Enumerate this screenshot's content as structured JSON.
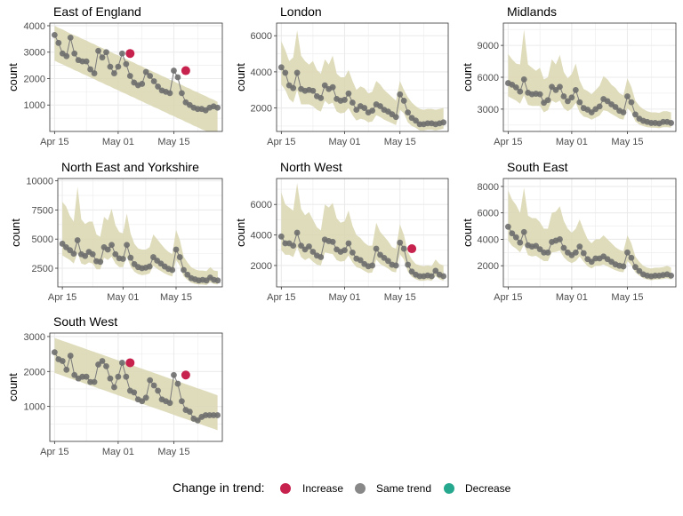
{
  "chart_data": [
    {
      "type": "scatter",
      "title": "East of England",
      "ylabel": "count",
      "ylim": [
        0,
        4100
      ],
      "yticks": [
        1000,
        2000,
        3000,
        4000
      ],
      "xlabel": "",
      "xticks": [
        "Apr 15",
        "May 01",
        "May 15"
      ],
      "values": [
        3650,
        3350,
        2950,
        2850,
        3550,
        2950,
        2700,
        2650,
        2650,
        2350,
        2200,
        3050,
        2800,
        3000,
        2450,
        2200,
        2450,
        2950,
        2550,
        2100,
        1850,
        1750,
        1800,
        2250,
        2100,
        1900,
        1700,
        1550,
        1500,
        1450,
        2300,
        2050,
        1450,
        1100,
        1000,
        900,
        850,
        850,
        800,
        900,
        950,
        900
      ],
      "band_hi": [
        4000,
        3920,
        3860,
        3780,
        3700,
        3640,
        3580,
        3500,
        3440,
        3360,
        3300,
        3220,
        3160,
        3080,
        3020,
        2940,
        2880,
        2800,
        2740,
        2660,
        2600,
        2520,
        2460,
        2380,
        2320,
        2240,
        2180,
        2100,
        2040,
        1960,
        1900,
        1820,
        1760,
        1680,
        1620,
        1540,
        1480,
        1400,
        1340,
        1260,
        1200,
        1120
      ],
      "band_lo": [
        2680,
        2600,
        2540,
        2460,
        2400,
        2320,
        2260,
        2180,
        2120,
        2040,
        1980,
        1900,
        1840,
        1760,
        1700,
        1620,
        1560,
        1480,
        1420,
        1340,
        1280,
        1200,
        1140,
        1060,
        1000,
        920,
        860,
        780,
        720,
        640,
        580,
        500,
        440,
        360,
        300,
        220,
        160,
        80,
        20,
        -40,
        -80,
        -120
      ],
      "highlight": [
        {
          "day": 19,
          "value": 2950,
          "status": "Increase"
        },
        {
          "day": 33,
          "value": 2300,
          "status": "Increase"
        }
      ]
    },
    {
      "type": "scatter",
      "title": "London",
      "ylabel": "count",
      "ylim": [
        700,
        6700
      ],
      "yticks": [
        2000,
        4000,
        6000
      ],
      "xlabel": "",
      "xticks": [
        "Apr 15",
        "May 01",
        "May 15"
      ],
      "values": [
        4250,
        3950,
        3250,
        3100,
        3950,
        3050,
        2950,
        3000,
        2950,
        2650,
        2550,
        3250,
        3050,
        3150,
        2500,
        2400,
        2450,
        2800,
        2300,
        1900,
        2100,
        2000,
        1750,
        1850,
        2200,
        2100,
        1900,
        1800,
        1650,
        1500,
        2750,
        2400,
        1750,
        1450,
        1300,
        1100,
        1100,
        1150,
        1150,
        1100,
        1150,
        1200
      ],
      "band_hi": [
        5700,
        5200,
        4600,
        4800,
        6300,
        4900,
        4600,
        4400,
        4600,
        4100,
        3900,
        4700,
        4400,
        4900,
        3900,
        3700,
        3700,
        4100,
        3500,
        3000,
        3200,
        3100,
        2800,
        2900,
        3500,
        3300,
        3000,
        2800,
        2600,
        2400,
        3500,
        3000,
        2600,
        2300,
        2100,
        1950,
        1900,
        1950,
        1950,
        1900,
        1950,
        2000
      ],
      "band_lo": [
        3300,
        3000,
        2500,
        2300,
        3000,
        2200,
        2200,
        2200,
        2100,
        1900,
        1800,
        2400,
        2200,
        2300,
        1800,
        1700,
        1750,
        2000,
        1600,
        1300,
        1400,
        1350,
        1200,
        1250,
        1600,
        1500,
        1350,
        1250,
        1150,
        1050,
        1900,
        1700,
        1200,
        1000,
        900,
        750,
        750,
        800,
        800,
        750,
        800,
        850
      ],
      "highlight": []
    },
    {
      "type": "scatter",
      "title": "Midlands",
      "ylabel": "count",
      "ylim": [
        900,
        11100
      ],
      "yticks": [
        3000,
        6000,
        9000
      ],
      "xlabel": "",
      "xticks": [
        "Apr 15",
        "May 01",
        "May 15"
      ],
      "values": [
        5450,
        5300,
        5050,
        4650,
        5800,
        4550,
        4400,
        4450,
        4400,
        3600,
        3850,
        5100,
        4800,
        5100,
        4200,
        3750,
        4100,
        4800,
        3650,
        3100,
        2950,
        2700,
        3000,
        3250,
        3950,
        3750,
        3450,
        3200,
        2850,
        2700,
        4200,
        3650,
        2500,
        2100,
        1900,
        1800,
        1700,
        1700,
        1650,
        1800,
        1800,
        1700
      ],
      "band_hi": [
        8200,
        7700,
        7300,
        7200,
        10500,
        7200,
        6900,
        6600,
        6900,
        5800,
        6000,
        7700,
        7200,
        8100,
        6500,
        5900,
        6300,
        7300,
        5700,
        4900,
        4700,
        4400,
        4800,
        5200,
        6100,
        5800,
        5300,
        5000,
        4500,
        4300,
        5900,
        5100,
        3800,
        3300,
        3000,
        2800,
        2700,
        2700,
        2650,
        2800,
        2800,
        2700
      ],
      "band_lo": [
        4200,
        4000,
        3800,
        3500,
        4300,
        3400,
        3300,
        3300,
        3300,
        2700,
        2900,
        3800,
        3600,
        3800,
        3100,
        2800,
        3050,
        3600,
        2700,
        2300,
        2200,
        2000,
        2200,
        2400,
        2900,
        2800,
        2550,
        2350,
        2100,
        2000,
        3100,
        2700,
        1850,
        1550,
        1400,
        1300,
        1250,
        1250,
        1200,
        1300,
        1300,
        1250
      ],
      "highlight": []
    },
    {
      "type": "scatter",
      "title": "North East and Yorkshire",
      "ylabel": "count",
      "ylim": [
        900,
        10200
      ],
      "yticks": [
        2500,
        5000,
        7500,
        10000
      ],
      "xlabel": "",
      "xticks": [
        "Apr 15",
        "May 01",
        "May 15"
      ],
      "values": [
        4600,
        4300,
        4050,
        3750,
        4900,
        3700,
        3550,
        3900,
        3700,
        3100,
        3050,
        4300,
        4100,
        4500,
        3700,
        3350,
        3300,
        4500,
        3400,
        2850,
        2600,
        2500,
        2550,
        2650,
        3450,
        3150,
        2900,
        2650,
        2450,
        2350,
        4100,
        3450,
        2350,
        1950,
        1650,
        1550,
        1450,
        1500,
        1450,
        1700,
        1500,
        1450
      ],
      "band_hi": [
        8200,
        7800,
        7000,
        6500,
        9500,
        6700,
        6300,
        6500,
        6500,
        5400,
        5200,
        6900,
        6600,
        7600,
        6200,
        5600,
        5500,
        7200,
        5500,
        4600,
        4200,
        4100,
        4100,
        4300,
        5400,
        5000,
        4600,
        4200,
        3900,
        3700,
        5800,
        4900,
        3500,
        3000,
        2600,
        2400,
        2300,
        2300,
        2250,
        2600,
        2300,
        2250
      ],
      "band_lo": [
        3600,
        3400,
        3200,
        2900,
        3800,
        2900,
        2800,
        3000,
        2900,
        2400,
        2400,
        3400,
        3200,
        3500,
        2900,
        2600,
        2600,
        3500,
        2650,
        2200,
        2000,
        1900,
        1950,
        2050,
        2700,
        2450,
        2250,
        2050,
        1900,
        1800,
        3200,
        2700,
        1800,
        1500,
        1250,
        1150,
        1100,
        1100,
        1050,
        1300,
        1150,
        1100
      ],
      "highlight": []
    },
    {
      "type": "scatter",
      "title": "North West",
      "ylabel": "count",
      "ylim": [
        600,
        7700
      ],
      "yticks": [
        2000,
        4000,
        6000
      ],
      "xlabel": "",
      "xticks": [
        "Apr 15",
        "May 01",
        "May 15"
      ],
      "values": [
        3900,
        3450,
        3450,
        3300,
        4150,
        3300,
        3050,
        3250,
        2900,
        2650,
        2550,
        3700,
        3600,
        3550,
        3050,
        2900,
        3000,
        3450,
        2850,
        2450,
        2350,
        2100,
        1950,
        2000,
        3100,
        2700,
        2500,
        2300,
        2050,
        2000,
        3500,
        3100,
        2050,
        1600,
        1400,
        1300,
        1300,
        1350,
        1300,
        1650,
        1400,
        1300
      ],
      "band_hi": [
        6800,
        6000,
        5800,
        5600,
        7400,
        5700,
        5300,
        5500,
        5000,
        4500,
        4300,
        6000,
        5800,
        6100,
        5100,
        4800,
        4900,
        5600,
        4600,
        4000,
        3800,
        3500,
        3300,
        3300,
        4800,
        4200,
        3900,
        3600,
        3200,
        3100,
        4700,
        4000,
        2900,
        2400,
        2100,
        2000,
        1950,
        2000,
        1950,
        2400,
        2100,
        2000
      ],
      "band_lo": [
        3000,
        2700,
        2700,
        2550,
        3200,
        2550,
        2350,
        2500,
        2250,
        2050,
        2000,
        2850,
        2800,
        2750,
        2350,
        2250,
        2300,
        2650,
        2200,
        1900,
        1800,
        1650,
        1500,
        1550,
        2400,
        2100,
        1950,
        1800,
        1600,
        1550,
        2750,
        2400,
        1600,
        1250,
        1100,
        1000,
        1000,
        1050,
        1000,
        1300,
        1100,
        1000
      ],
      "highlight": [
        {
          "day": 33,
          "value": 3100,
          "status": "Increase"
        }
      ]
    },
    {
      "type": "scatter",
      "title": "South East",
      "ylabel": "count",
      "ylim": [
        400,
        8600
      ],
      "yticks": [
        2000,
        4000,
        6000,
        8000
      ],
      "xlabel": "",
      "xticks": [
        "Apr 15",
        "May 01",
        "May 15"
      ],
      "values": [
        4950,
        4450,
        4150,
        3750,
        4550,
        3550,
        3450,
        3500,
        3250,
        3000,
        3000,
        3800,
        3900,
        4000,
        3350,
        3000,
        2800,
        3000,
        3450,
        2950,
        2500,
        2300,
        2550,
        2550,
        2700,
        2500,
        2300,
        2100,
        2000,
        1950,
        3000,
        2600,
        1900,
        1600,
        1350,
        1250,
        1200,
        1250,
        1250,
        1300,
        1350,
        1250
      ],
      "band_hi": [
        7700,
        7000,
        6600,
        6000,
        7900,
        5800,
        5600,
        5600,
        5300,
        4800,
        4800,
        6000,
        6100,
        6500,
        5400,
        4800,
        4500,
        4800,
        5500,
        4700,
        4000,
        3700,
        4000,
        4000,
        4300,
        4000,
        3700,
        3400,
        3200,
        3100,
        4300,
        3700,
        2700,
        2300,
        2000,
        1850,
        1800,
        1850,
        1850,
        1900,
        2000,
        1850
      ],
      "band_lo": [
        3900,
        3500,
        3300,
        3000,
        3600,
        2800,
        2700,
        2750,
        2550,
        2350,
        2350,
        3000,
        3050,
        3150,
        2650,
        2350,
        2200,
        2350,
        2700,
        2300,
        1950,
        1800,
        2000,
        2000,
        2100,
        1950,
        1800,
        1650,
        1550,
        1500,
        2350,
        2050,
        1500,
        1250,
        1050,
        950,
        900,
        950,
        950,
        1000,
        1050,
        950
      ],
      "highlight": []
    },
    {
      "type": "scatter",
      "title": "South West",
      "ylabel": "count",
      "ylim": [
        0,
        3100
      ],
      "yticks": [
        1000,
        2000,
        3000
      ],
      "xlabel": "",
      "xticks": [
        "Apr 15",
        "May 01",
        "May 15"
      ],
      "values": [
        2550,
        2350,
        2300,
        2050,
        2450,
        1900,
        1800,
        1850,
        1850,
        1700,
        1700,
        2200,
        2300,
        2150,
        1800,
        1550,
        1850,
        2250,
        1850,
        1450,
        1400,
        1200,
        1150,
        1250,
        1750,
        1600,
        1450,
        1200,
        1150,
        1100,
        1900,
        1650,
        1150,
        900,
        850,
        650,
        600,
        700,
        750,
        750,
        750,
        750
      ],
      "band_hi": [
        2960,
        2920,
        2880,
        2840,
        2800,
        2760,
        2720,
        2680,
        2640,
        2600,
        2560,
        2520,
        2480,
        2440,
        2400,
        2360,
        2320,
        2280,
        2240,
        2200,
        2160,
        2120,
        2080,
        2040,
        2000,
        1960,
        1920,
        1880,
        1840,
        1800,
        1760,
        1720,
        1680,
        1640,
        1600,
        1560,
        1520,
        1480,
        1440,
        1400,
        1360,
        1320
      ],
      "band_lo": [
        1960,
        1920,
        1880,
        1840,
        1800,
        1760,
        1720,
        1680,
        1640,
        1600,
        1560,
        1520,
        1480,
        1440,
        1400,
        1360,
        1320,
        1280,
        1240,
        1200,
        1160,
        1120,
        1080,
        1040,
        1000,
        960,
        920,
        880,
        840,
        800,
        760,
        720,
        680,
        640,
        600,
        560,
        520,
        480,
        440,
        400,
        360,
        320
      ],
      "highlight": [
        {
          "day": 19,
          "value": 2250,
          "status": "Increase"
        },
        {
          "day": 33,
          "value": 1900,
          "status": "Increase"
        }
      ]
    }
  ],
  "legend": {
    "title": "Change in trend:",
    "items": [
      {
        "label": "Increase",
        "color": "#c7224d"
      },
      {
        "label": "Same trend",
        "color": "#888888"
      },
      {
        "label": "Decrease",
        "color": "#26a88e"
      }
    ]
  },
  "colors": {
    "band": "#d9d6b0",
    "line": "#7a7a7a",
    "point": "#6e6e6e",
    "grid": "#ebebeb",
    "border": "#333333"
  }
}
